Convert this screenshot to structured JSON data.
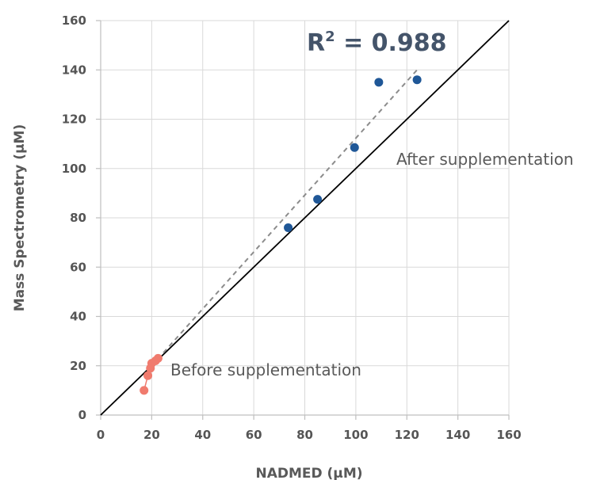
{
  "chart_data": {
    "type": "scatter",
    "xlabel": "NADMED (µM)",
    "ylabel": "Mass Spectrometry (µM)",
    "xlim": [
      0,
      160
    ],
    "ylim": [
      0,
      160
    ],
    "x_ticks": [
      0,
      20,
      40,
      60,
      80,
      100,
      120,
      140,
      160
    ],
    "y_ticks": [
      0,
      20,
      40,
      60,
      80,
      100,
      120,
      140,
      160
    ],
    "grid": true,
    "series": [
      {
        "name": "Before supplementation",
        "color": "#f07b6e",
        "points": [
          [
            17,
            10
          ],
          [
            18.5,
            16
          ],
          [
            19.5,
            19
          ],
          [
            20,
            21
          ],
          [
            21.5,
            22
          ],
          [
            22.5,
            23
          ]
        ]
      },
      {
        "name": "After supplementation",
        "color": "#1f5797",
        "points": [
          [
            73.5,
            76
          ],
          [
            85,
            87.5
          ],
          [
            99.5,
            108.5
          ],
          [
            109,
            135
          ],
          [
            124,
            136
          ]
        ]
      }
    ],
    "identity_line": {
      "from": [
        0,
        0
      ],
      "to": [
        160,
        160
      ],
      "color": "#000000"
    },
    "trend_line": {
      "from": [
        20,
        20
      ],
      "to": [
        124,
        140
      ],
      "color": "#8c8c8c",
      "style": "dashed"
    },
    "annotations": {
      "r2_prefix": "R",
      "r2_sup": "2",
      "r2_value": " = 0.988",
      "before_label": "Before supplementation",
      "after_label": "After supplementation"
    }
  }
}
